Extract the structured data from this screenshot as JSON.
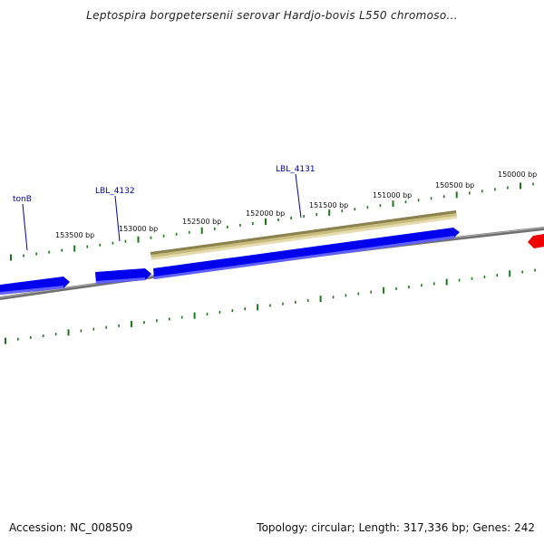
{
  "title": "Leptospira borgpetersenii serovar Hardjo-bovis L550 chromoso...",
  "footer": {
    "accession": "Accession: NC_008509",
    "summary": "Topology: circular; Length: 317,336 bp; Genes: 242"
  },
  "colors": {
    "gene_forward": "#0000ee",
    "gene_reverse": "#ee0000",
    "feature_band": "#c8bc7c",
    "backbone": "#808080",
    "ticks": "#1a7a1a",
    "label_lines": "#0000aa"
  },
  "bp_labels": [
    "150000 bp",
    "150500 bp",
    "151000 bp",
    "151500 bp",
    "152000 bp",
    "152500 bp",
    "153000 bp",
    "153500 bp"
  ],
  "genes": [
    {
      "label": "LBL_4131"
    },
    {
      "label": "LBL_4132"
    },
    {
      "label": "tonB"
    }
  ]
}
